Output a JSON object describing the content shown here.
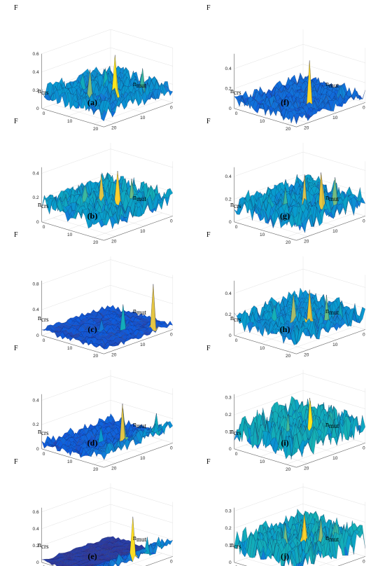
{
  "figure": {
    "panels": [
      {
        "caption": "(a)",
        "zlabel": "F",
        "xlabel_main": "n",
        "xlabel_sub": "crs",
        "ylabel_main": "n",
        "ylabel_sub": "mut"
      },
      {
        "caption": "(b)",
        "zlabel": "F",
        "xlabel_main": "n",
        "xlabel_sub": "crs",
        "ylabel_main": "n",
        "ylabel_sub": "mut"
      },
      {
        "caption": "(c)",
        "zlabel": "F",
        "xlabel_main": "n",
        "xlabel_sub": "crs",
        "ylabel_main": "n",
        "ylabel_sub": "mut"
      },
      {
        "caption": "(d)",
        "zlabel": "F",
        "xlabel_main": "n",
        "xlabel_sub": "crs",
        "ylabel_main": "n",
        "ylabel_sub": "mut"
      },
      {
        "caption": "(e)",
        "zlabel": "F",
        "xlabel_main": "n",
        "xlabel_sub": "crs",
        "ylabel_main": "n",
        "ylabel_sub": "mut"
      },
      {
        "caption": "(f)",
        "zlabel": "F",
        "xlabel_main": "n",
        "xlabel_sub": "crs",
        "ylabel_main": "n",
        "ylabel_sub": "mut"
      },
      {
        "caption": "(g)",
        "zlabel": "F",
        "xlabel_main": "n",
        "xlabel_sub": "crs",
        "ylabel_main": "n",
        "ylabel_sub": "mut"
      },
      {
        "caption": "(h)",
        "zlabel": "F",
        "xlabel_main": "n",
        "xlabel_sub": "crs",
        "ylabel_main": "n",
        "ylabel_sub": "mut"
      },
      {
        "caption": "(i)",
        "zlabel": "F",
        "xlabel_main": "n",
        "xlabel_sub": "crs",
        "ylabel_main": "n",
        "ylabel_sub": "mut"
      },
      {
        "caption": "(j)",
        "zlabel": "F",
        "xlabel_main": "n",
        "xlabel_sub": "crs",
        "ylabel_main": "n",
        "ylabel_sub": "mut"
      }
    ]
  },
  "chart_data": [
    {
      "panel": "(a)",
      "type": "surface",
      "x_ticks": [
        "0",
        "10",
        "20"
      ],
      "y_ticks": [
        "0",
        "10",
        "20"
      ],
      "z_ticks": [
        "0",
        "0.2",
        "0.4",
        "0.6"
      ],
      "zlim": [
        0,
        0.6
      ],
      "grid": true,
      "colormap": "parula",
      "base": 0.16,
      "noise": 0.1,
      "decay": 0.0,
      "seed": 11,
      "peaks": [
        {
          "i": 12,
          "j": 15,
          "z": 0.58
        },
        {
          "i": 18,
          "j": 12,
          "z": 0.46
        },
        {
          "i": 6,
          "j": 19,
          "z": 0.4
        },
        {
          "i": 10,
          "j": 9,
          "z": 0.36
        },
        {
          "i": 15,
          "j": 6,
          "z": 0.33
        }
      ]
    },
    {
      "panel": "(b)",
      "type": "surface",
      "x_ticks": [
        "0",
        "10",
        "20"
      ],
      "y_ticks": [
        "0",
        "10",
        "20"
      ],
      "z_ticks": [
        "0",
        "0.2",
        "0.4"
      ],
      "zlim": [
        0,
        0.45
      ],
      "grid": true,
      "colormap": "parula",
      "base": 0.15,
      "noise": 0.09,
      "decay": 0.0,
      "seed": 23,
      "peaks": [
        {
          "i": 12,
          "j": 16,
          "z": 0.42
        },
        {
          "i": 15,
          "j": 13,
          "z": 0.4
        },
        {
          "i": 8,
          "j": 17,
          "z": 0.33
        },
        {
          "i": 17,
          "j": 9,
          "z": 0.3
        },
        {
          "i": 4,
          "j": 20,
          "z": 0.26
        }
      ]
    },
    {
      "panel": "(c)",
      "type": "surface",
      "x_ticks": [
        "0",
        "10",
        "20"
      ],
      "y_ticks": [
        "0",
        "10",
        "20"
      ],
      "z_ticks": [
        "0",
        "0.4",
        "0.8"
      ],
      "zlim": [
        0,
        0.85
      ],
      "grid": true,
      "colormap": "parula",
      "base": 0.08,
      "noise": 0.05,
      "decay": 0.0,
      "seed": 37,
      "peaks": [
        {
          "i": 5,
          "j": 22,
          "z": 0.76
        },
        {
          "i": 11,
          "j": 17,
          "z": 0.48
        },
        {
          "i": 14,
          "j": 12,
          "z": 0.24
        },
        {
          "i": 8,
          "j": 14,
          "z": 0.2
        }
      ]
    },
    {
      "panel": "(d)",
      "type": "surface",
      "x_ticks": [
        "0",
        "10",
        "20"
      ],
      "y_ticks": [
        "0",
        "10",
        "20"
      ],
      "z_ticks": [
        "0",
        "0.2",
        "0.4"
      ],
      "zlim": [
        0,
        0.45
      ],
      "grid": true,
      "colormap": "parula",
      "base": 0.05,
      "noise": 0.04,
      "decay": 0.14,
      "seed": 41,
      "peaks": [
        {
          "i": 13,
          "j": 19,
          "z": 0.4
        },
        {
          "i": 11,
          "j": 17,
          "z": 0.33
        },
        {
          "i": 3,
          "j": 21,
          "z": 0.25
        },
        {
          "i": 16,
          "j": 14,
          "z": 0.2
        }
      ]
    },
    {
      "panel": "(e)",
      "type": "surface",
      "x_ticks": [
        "0",
        "10",
        "20"
      ],
      "y_ticks": [
        "0",
        "10",
        "20"
      ],
      "z_ticks": [
        "0",
        "0.2",
        "0.4",
        "0.6"
      ],
      "zlim": [
        0,
        0.65
      ],
      "grid": true,
      "colormap": "parula",
      "base": 0.02,
      "noise": 0.02,
      "decay": 0.24,
      "seed": 53,
      "peaks": [
        {
          "i": 13,
          "j": 23,
          "z": 0.62
        },
        {
          "i": 8,
          "j": 23,
          "z": 0.32
        },
        {
          "i": 4,
          "j": 23,
          "z": 0.27
        },
        {
          "i": 17,
          "j": 22,
          "z": 0.22
        },
        {
          "i": 20,
          "j": 22,
          "z": 0.18
        }
      ]
    },
    {
      "panel": "(f)",
      "type": "surface",
      "x_ticks": [
        "0",
        "10",
        "20"
      ],
      "y_ticks": [
        "0",
        "10",
        "20"
      ],
      "z_ticks": [
        "0",
        "0.2",
        "0.4"
      ],
      "zlim": [
        0,
        0.55
      ],
      "grid": true,
      "colormap": "parula",
      "base": 0.08,
      "noise": 0.06,
      "decay": 0.0,
      "seed": 67,
      "peaks": [
        {
          "i": 14,
          "j": 18,
          "z": 0.52
        },
        {
          "i": 4,
          "j": 19,
          "z": 0.18
        },
        {
          "i": 19,
          "j": 10,
          "z": 0.16
        },
        {
          "i": 9,
          "j": 12,
          "z": 0.14
        }
      ]
    },
    {
      "panel": "(g)",
      "type": "surface",
      "x_ticks": [
        "0",
        "10",
        "20"
      ],
      "y_ticks": [
        "0",
        "10",
        "20"
      ],
      "z_ticks": [
        "0",
        "0.2",
        "0.4"
      ],
      "zlim": [
        0,
        0.48
      ],
      "grid": true,
      "colormap": "parula",
      "base": 0.14,
      "noise": 0.1,
      "decay": 0.0,
      "seed": 71,
      "peaks": [
        {
          "i": 10,
          "j": 18,
          "z": 0.43
        },
        {
          "i": 13,
          "j": 15,
          "z": 0.42
        },
        {
          "i": 6,
          "j": 19,
          "z": 0.36
        },
        {
          "i": 17,
          "j": 12,
          "z": 0.32
        },
        {
          "i": 20,
          "j": 9,
          "z": 0.26
        }
      ]
    },
    {
      "panel": "(h)",
      "type": "surface",
      "x_ticks": [
        "0",
        "10",
        "20"
      ],
      "y_ticks": [
        "0",
        "10",
        "20"
      ],
      "z_ticks": [
        "0",
        "0.2",
        "0.4"
      ],
      "zlim": [
        0,
        0.52
      ],
      "grid": true,
      "colormap": "parula",
      "base": 0.15,
      "noise": 0.09,
      "decay": 0.0,
      "seed": 83,
      "peaks": [
        {
          "i": 14,
          "j": 18,
          "z": 0.47
        },
        {
          "i": 16,
          "j": 14,
          "z": 0.42
        },
        {
          "i": 9,
          "j": 19,
          "z": 0.38
        },
        {
          "i": 19,
          "j": 10,
          "z": 0.31
        },
        {
          "i": 5,
          "j": 20,
          "z": 0.28
        }
      ]
    },
    {
      "panel": "(i)",
      "type": "surface",
      "x_ticks": [
        "0",
        "10",
        "20"
      ],
      "y_ticks": [
        "0",
        "10",
        "20"
      ],
      "z_ticks": [
        "0",
        "0.1",
        "0.2",
        "0.3"
      ],
      "zlim": [
        0,
        0.32
      ],
      "grid": true,
      "colormap": "parula",
      "base": 0.11,
      "noise": 0.08,
      "decay": 0.0,
      "seed": 97,
      "peaks": [
        {
          "i": 13,
          "j": 17,
          "z": 0.31
        },
        {
          "i": 11,
          "j": 15,
          "z": 0.27
        },
        {
          "i": 17,
          "j": 13,
          "z": 0.22
        },
        {
          "i": 7,
          "j": 18,
          "z": 0.2
        }
      ]
    },
    {
      "panel": "(j)",
      "type": "surface",
      "x_ticks": [
        "0",
        "10",
        "20"
      ],
      "y_ticks": [
        "0",
        "10",
        "20"
      ],
      "z_ticks": [
        "0",
        "0.1",
        "0.2",
        "0.3"
      ],
      "zlim": [
        0,
        0.32
      ],
      "grid": true,
      "colormap": "parula",
      "base": 0.11,
      "noise": 0.08,
      "decay": 0.0,
      "seed": 103,
      "peaks": [
        {
          "i": 14,
          "j": 16,
          "z": 0.3
        },
        {
          "i": 10,
          "j": 18,
          "z": 0.25
        },
        {
          "i": 17,
          "j": 12,
          "z": 0.24
        },
        {
          "i": 6,
          "j": 19,
          "z": 0.21
        }
      ]
    }
  ]
}
